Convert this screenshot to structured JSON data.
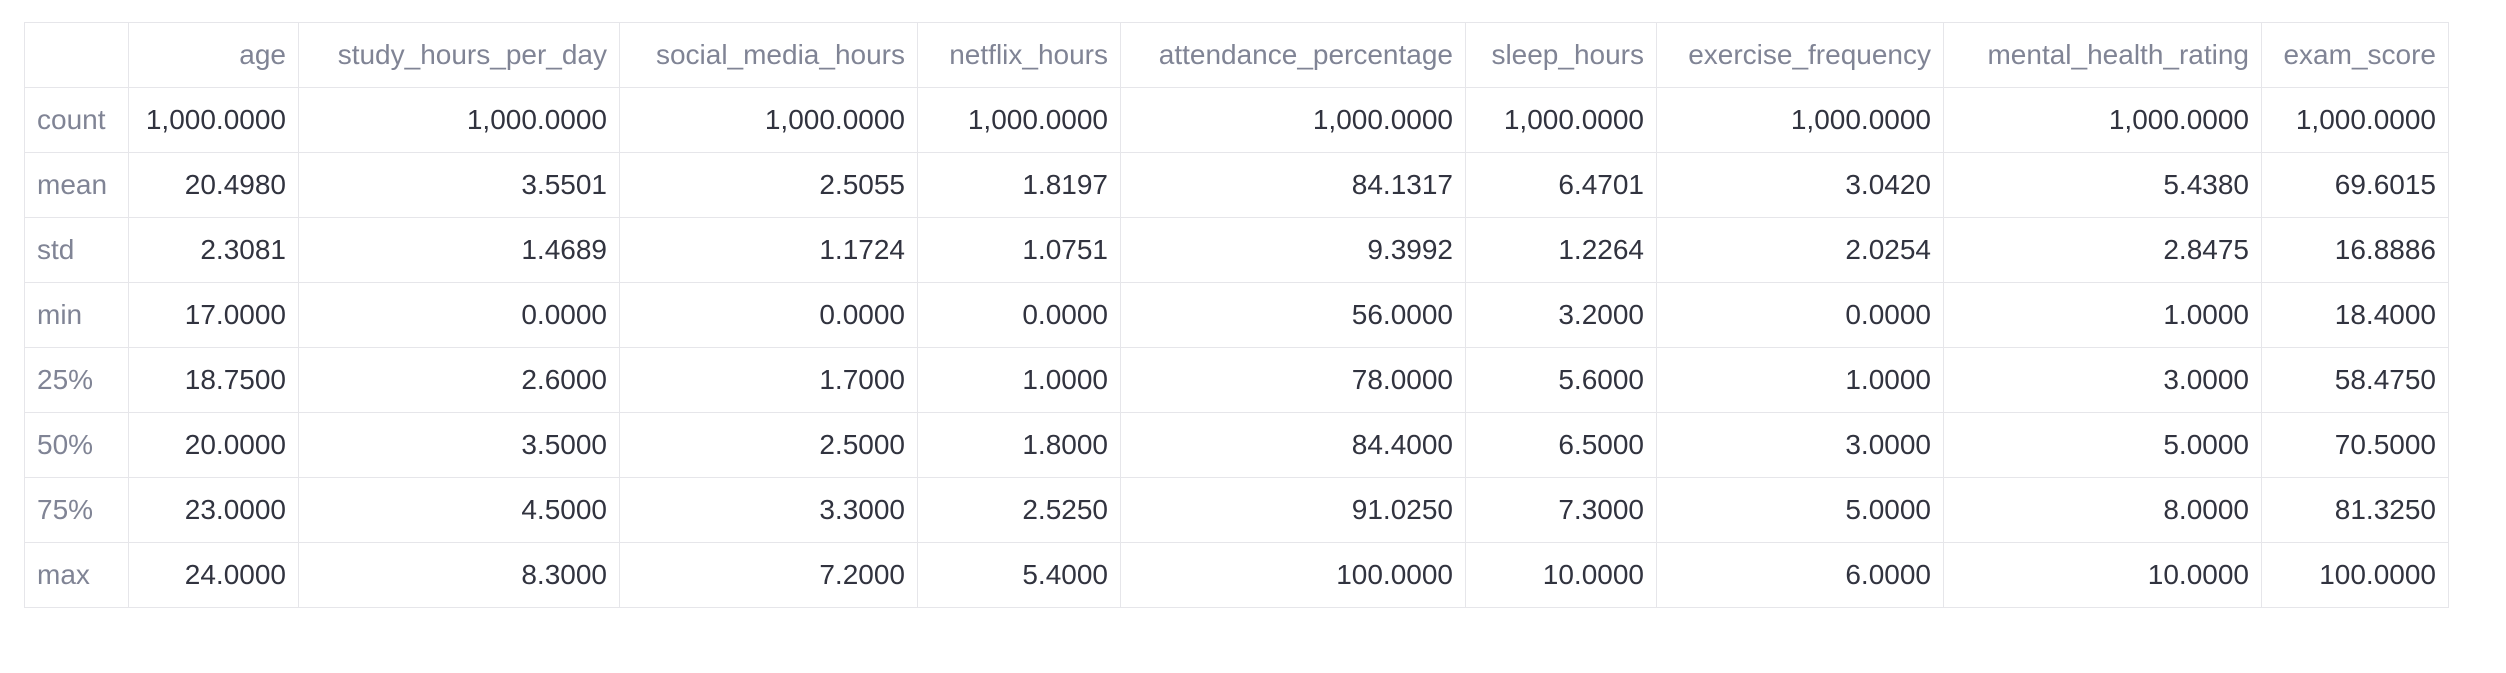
{
  "dataframe": {
    "corner": "",
    "columns": [
      "age",
      "study_hours_per_day",
      "social_media_hours",
      "netflix_hours",
      "attendance_percentage",
      "sleep_hours",
      "exercise_frequency",
      "mental_health_rating",
      "exam_score"
    ],
    "rows": [
      {
        "index": "count",
        "values": [
          "1,000.0000",
          "1,000.0000",
          "1,000.0000",
          "1,000.0000",
          "1,000.0000",
          "1,000.0000",
          "1,000.0000",
          "1,000.0000",
          "1,000.0000"
        ]
      },
      {
        "index": "mean",
        "values": [
          "20.4980",
          "3.5501",
          "2.5055",
          "1.8197",
          "84.1317",
          "6.4701",
          "3.0420",
          "5.4380",
          "69.6015"
        ]
      },
      {
        "index": "std",
        "values": [
          "2.3081",
          "1.4689",
          "1.1724",
          "1.0751",
          "9.3992",
          "1.2264",
          "2.0254",
          "2.8475",
          "16.8886"
        ]
      },
      {
        "index": "min",
        "values": [
          "17.0000",
          "0.0000",
          "0.0000",
          "0.0000",
          "56.0000",
          "3.2000",
          "0.0000",
          "1.0000",
          "18.4000"
        ]
      },
      {
        "index": "25%",
        "values": [
          "18.7500",
          "2.6000",
          "1.7000",
          "1.0000",
          "78.0000",
          "5.6000",
          "1.0000",
          "3.0000",
          "58.4750"
        ]
      },
      {
        "index": "50%",
        "values": [
          "20.0000",
          "3.5000",
          "2.5000",
          "1.8000",
          "84.4000",
          "6.5000",
          "3.0000",
          "5.0000",
          "70.5000"
        ]
      },
      {
        "index": "75%",
        "values": [
          "23.0000",
          "4.5000",
          "3.3000",
          "2.5250",
          "91.0250",
          "7.3000",
          "5.0000",
          "8.0000",
          "81.3250"
        ]
      },
      {
        "index": "max",
        "values": [
          "24.0000",
          "8.3000",
          "7.2000",
          "5.4000",
          "100.0000",
          "10.0000",
          "6.0000",
          "10.0000",
          "100.0000"
        ]
      }
    ]
  }
}
